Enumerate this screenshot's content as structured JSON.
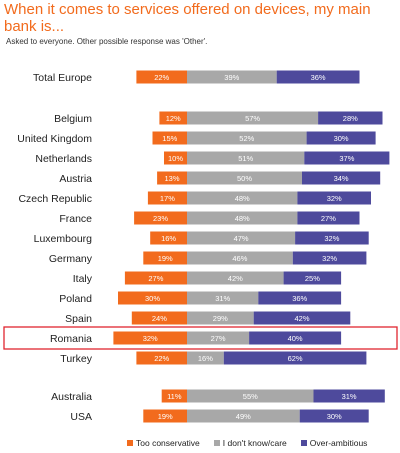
{
  "title": "When it comes to services offered on devices, my main bank is...",
  "subtitle": "Asked to everyone. Other possible response was 'Other'.",
  "colors": {
    "too_conservative": "#f26b1d",
    "dont_know": "#a8a8a8",
    "over_ambitious": "#4e4a9c",
    "highlight": "#e0252f",
    "title": "#f26b1d"
  },
  "chart_data": {
    "type": "bar",
    "orientation": "horizontal-stacked-diverging",
    "title": "When it comes to services offered on devices, my main bank is...",
    "subtitle": "Asked to everyone. Other possible response was 'Other'.",
    "series": [
      {
        "name": "Too conservative"
      },
      {
        "name": "I don't know/care"
      },
      {
        "name": "Over-ambitious"
      }
    ],
    "highlighted": "Romania",
    "groups": [
      [
        {
          "country": "Total Europe",
          "values": [
            22,
            39,
            36
          ]
        }
      ],
      [
        {
          "country": "Belgium",
          "values": [
            12,
            57,
            28
          ]
        },
        {
          "country": "United Kingdom",
          "values": [
            15,
            52,
            30
          ]
        },
        {
          "country": "Netherlands",
          "values": [
            10,
            51,
            37
          ]
        },
        {
          "country": "Austria",
          "values": [
            13,
            50,
            34
          ]
        },
        {
          "country": "Czech Republic",
          "values": [
            17,
            48,
            32
          ]
        },
        {
          "country": "France",
          "values": [
            23,
            48,
            27
          ]
        },
        {
          "country": "Luxembourg",
          "values": [
            16,
            47,
            32
          ]
        },
        {
          "country": "Germany",
          "values": [
            19,
            46,
            32
          ]
        },
        {
          "country": "Italy",
          "values": [
            27,
            42,
            25
          ]
        },
        {
          "country": "Poland",
          "values": [
            30,
            31,
            36
          ]
        },
        {
          "country": "Spain",
          "values": [
            24,
            29,
            42
          ]
        },
        {
          "country": "Romania",
          "values": [
            32,
            27,
            40
          ]
        },
        {
          "country": "Turkey",
          "values": [
            22,
            16,
            62
          ]
        }
      ],
      [
        {
          "country": "Australia",
          "values": [
            11,
            55,
            31
          ]
        },
        {
          "country": "USA",
          "values": [
            19,
            49,
            30
          ]
        }
      ]
    ]
  }
}
